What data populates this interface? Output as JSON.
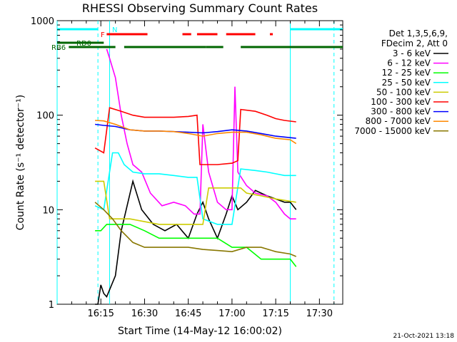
{
  "chart_data": {
    "type": "line",
    "title": "RHESSI Observing Summary Count Rates",
    "xlabel": "Start Time (14-May-12 16:00:02)",
    "ylabel": "Count Rate (s⁻¹ detector⁻¹)",
    "y_scale": "log",
    "ylim": [
      1,
      1000
    ],
    "xlim": [
      "16:00",
      "17:38"
    ],
    "x_ticks": [
      "16:15",
      "16:30",
      "16:45",
      "17:00",
      "17:15",
      "17:30"
    ],
    "y_ticks": [
      "1",
      "10",
      "100",
      "1000"
    ],
    "grid": false,
    "legend_position": "right",
    "legend_header": [
      "Det 1,3,5,6,9,",
      "FDecim 2, Att 0"
    ],
    "series": [
      {
        "name": "3 - 6 keV",
        "color": "#000000",
        "points": [
          [
            "16:13",
            1
          ],
          [
            "16:14",
            1
          ],
          [
            "16:15",
            1.6
          ],
          [
            "16:16",
            1.3
          ],
          [
            "16:17",
            1.2
          ],
          [
            "16:20",
            2
          ],
          [
            "16:22",
            6
          ],
          [
            "16:26",
            20
          ],
          [
            "16:29",
            10
          ],
          [
            "16:33",
            7
          ],
          [
            "16:37",
            6
          ],
          [
            "16:41",
            7
          ],
          [
            "16:45",
            5
          ],
          [
            "16:48",
            9
          ],
          [
            "16:50",
            12
          ],
          [
            "16:52",
            8
          ],
          [
            "16:55",
            5
          ],
          [
            "16:58",
            9
          ],
          [
            "17:00",
            14
          ],
          [
            "17:02",
            10
          ],
          [
            "17:05",
            12
          ],
          [
            "17:08",
            16
          ],
          [
            "17:12",
            14
          ],
          [
            "17:15",
            13
          ],
          [
            "17:18",
            12
          ],
          [
            "17:20",
            12
          ],
          [
            "17:22",
            10
          ]
        ]
      },
      {
        "name": "6 - 12 keV",
        "color": "#ff00ff",
        "points": [
          [
            "16:17",
            500
          ],
          [
            "16:18",
            400
          ],
          [
            "16:20",
            250
          ],
          [
            "16:22",
            100
          ],
          [
            "16:24",
            50
          ],
          [
            "16:26",
            30
          ],
          [
            "16:29",
            25
          ],
          [
            "16:32",
            15
          ],
          [
            "16:36",
            11
          ],
          [
            "16:40",
            12
          ],
          [
            "16:44",
            11
          ],
          [
            "16:47",
            9
          ],
          [
            "16:49",
            9
          ],
          [
            "16:50",
            80
          ],
          [
            "16:52",
            25
          ],
          [
            "16:55",
            12
          ],
          [
            "16:58",
            10
          ],
          [
            "17:00",
            10
          ],
          [
            "17:01",
            200
          ],
          [
            "17:02",
            25
          ],
          [
            "17:05",
            18
          ],
          [
            "17:08",
            15
          ],
          [
            "17:12",
            14
          ],
          [
            "17:15",
            12
          ],
          [
            "17:18",
            9
          ],
          [
            "17:20",
            8
          ],
          [
            "17:22",
            8
          ]
        ]
      },
      {
        "name": "12 - 25 keV",
        "color": "#00ff00",
        "points": [
          [
            "16:13",
            6
          ],
          [
            "16:15",
            6
          ],
          [
            "16:17",
            7
          ],
          [
            "16:20",
            7
          ],
          [
            "16:25",
            7
          ],
          [
            "16:30",
            6
          ],
          [
            "16:35",
            5
          ],
          [
            "16:40",
            5
          ],
          [
            "16:45",
            5
          ],
          [
            "16:50",
            5
          ],
          [
            "16:55",
            5
          ],
          [
            "17:00",
            4
          ],
          [
            "17:05",
            4
          ],
          [
            "17:10",
            3
          ],
          [
            "17:15",
            3
          ],
          [
            "17:20",
            3
          ],
          [
            "17:22",
            2.5
          ]
        ]
      },
      {
        "name": "25 - 50 keV",
        "color": "#00ffff",
        "points": [
          [
            "16:13",
            11
          ],
          [
            "16:16",
            10
          ],
          [
            "16:19",
            40
          ],
          [
            "16:21",
            40
          ],
          [
            "16:23",
            30
          ],
          [
            "16:26",
            25
          ],
          [
            "16:30",
            24
          ],
          [
            "16:35",
            24
          ],
          [
            "16:40",
            23
          ],
          [
            "16:45",
            22
          ],
          [
            "16:48",
            22
          ],
          [
            "16:50",
            8
          ],
          [
            "16:55",
            7
          ],
          [
            "17:00",
            7
          ],
          [
            "17:03",
            27
          ],
          [
            "17:08",
            26
          ],
          [
            "17:12",
            25
          ],
          [
            "17:15",
            24
          ],
          [
            "17:18",
            23
          ],
          [
            "17:22",
            23
          ]
        ]
      },
      {
        "name": "50 - 100 keV",
        "color": "#cccc00",
        "points": [
          [
            "16:13",
            20
          ],
          [
            "16:16",
            20
          ],
          [
            "16:18",
            8
          ],
          [
            "16:25",
            8
          ],
          [
            "16:35",
            7
          ],
          [
            "16:45",
            7
          ],
          [
            "16:50",
            7
          ],
          [
            "16:52",
            17
          ],
          [
            "16:58",
            17
          ],
          [
            "17:00",
            17
          ],
          [
            "17:03",
            17
          ],
          [
            "17:05",
            15
          ],
          [
            "17:10",
            14
          ],
          [
            "17:15",
            13
          ],
          [
            "17:22",
            12
          ]
        ]
      },
      {
        "name": "100 - 300 keV",
        "color": "#ff0000",
        "points": [
          [
            "16:13",
            45
          ],
          [
            "16:16",
            40
          ],
          [
            "16:18",
            120
          ],
          [
            "16:22",
            110
          ],
          [
            "16:26",
            100
          ],
          [
            "16:30",
            95
          ],
          [
            "16:35",
            95
          ],
          [
            "16:40",
            95
          ],
          [
            "16:45",
            97
          ],
          [
            "16:48",
            100
          ],
          [
            "16:49",
            30
          ],
          [
            "16:55",
            30
          ],
          [
            "17:00",
            31
          ],
          [
            "17:02",
            33
          ],
          [
            "17:03",
            115
          ],
          [
            "17:08",
            110
          ],
          [
            "17:12",
            100
          ],
          [
            "17:15",
            92
          ],
          [
            "17:18",
            88
          ],
          [
            "17:22",
            85
          ]
        ]
      },
      {
        "name": "300 - 800 keV",
        "color": "#0000ff",
        "points": [
          [
            "16:13",
            80
          ],
          [
            "16:16",
            78
          ],
          [
            "16:20",
            76
          ],
          [
            "16:25",
            70
          ],
          [
            "16:30",
            68
          ],
          [
            "16:35",
            68
          ],
          [
            "16:40",
            67
          ],
          [
            "16:45",
            66
          ],
          [
            "16:50",
            65
          ],
          [
            "16:55",
            67
          ],
          [
            "17:00",
            70
          ],
          [
            "17:05",
            68
          ],
          [
            "17:10",
            64
          ],
          [
            "17:15",
            60
          ],
          [
            "17:22",
            57
          ]
        ]
      },
      {
        "name": "800 - 7000 keV",
        "color": "#ff8800",
        "points": [
          [
            "16:13",
            88
          ],
          [
            "16:16",
            87
          ],
          [
            "16:20",
            80
          ],
          [
            "16:25",
            70
          ],
          [
            "16:30",
            68
          ],
          [
            "16:35",
            68
          ],
          [
            "16:40",
            67
          ],
          [
            "16:45",
            64
          ],
          [
            "16:50",
            60
          ],
          [
            "16:55",
            64
          ],
          [
            "17:00",
            66
          ],
          [
            "17:05",
            66
          ],
          [
            "17:10",
            62
          ],
          [
            "17:15",
            57
          ],
          [
            "17:20",
            55
          ],
          [
            "17:22",
            50
          ]
        ]
      },
      {
        "name": "7000 - 15000 keV",
        "color": "#887700",
        "points": [
          [
            "16:13",
            12
          ],
          [
            "16:16",
            10
          ],
          [
            "16:19",
            8
          ],
          [
            "16:22",
            6
          ],
          [
            "16:26",
            4.5
          ],
          [
            "16:30",
            4
          ],
          [
            "16:35",
            4
          ],
          [
            "16:40",
            4
          ],
          [
            "16:45",
            4
          ],
          [
            "16:50",
            3.8
          ],
          [
            "16:55",
            3.7
          ],
          [
            "17:00",
            3.6
          ],
          [
            "17:05",
            4
          ],
          [
            "17:10",
            4
          ],
          [
            "17:15",
            3.6
          ],
          [
            "17:20",
            3.4
          ],
          [
            "17:22",
            3.2
          ]
        ]
      }
    ],
    "state_bars": [
      {
        "label": "N",
        "color": "#00ffff",
        "segments": [
          [
            "16:00",
            "16:14"
          ],
          [
            "17:20",
            "17:38"
          ]
        ]
      },
      {
        "label": "F",
        "color": "#ff0000",
        "segments": [
          [
            "16:17",
            "16:31"
          ],
          [
            "16:43",
            "16:46"
          ],
          [
            "16:48",
            "16:55"
          ],
          [
            "16:58",
            "17:08"
          ],
          [
            "17:13",
            "17:14"
          ]
        ]
      },
      {
        "label": "RD0",
        "color": "#006600",
        "segments": [
          [
            "16:00",
            "16:16"
          ]
        ]
      },
      {
        "label": "RB6",
        "color": "#006600",
        "segments": [
          [
            "16:04",
            "16:20"
          ],
          [
            "16:23",
            "16:51"
          ],
          [
            "16:51",
            "16:57"
          ],
          [
            "17:03",
            "17:38"
          ]
        ]
      }
    ],
    "vlines": [
      {
        "time": "16:00",
        "color": "#00ffff",
        "style": "solid"
      },
      {
        "time": "16:14",
        "color": "#00ffff",
        "style": "dashed"
      },
      {
        "time": "16:18",
        "color": "#00ffff",
        "style": "solid"
      },
      {
        "time": "17:20",
        "color": "#00ffff",
        "style": "solid"
      },
      {
        "time": "17:35",
        "color": "#00ffff",
        "style": "dashed"
      }
    ]
  },
  "footer_timestamp": "21-Oct-2021 13:18"
}
